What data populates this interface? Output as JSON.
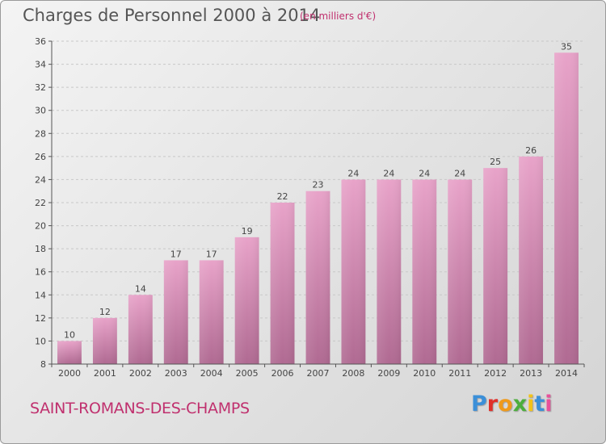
{
  "header": {
    "title": "Charges de Personnel 2000 à 2014",
    "subtitle": "(en milliers d'€)"
  },
  "footer": {
    "commune": "SAINT-ROMANS-DES-CHAMPS",
    "logo_text": "Proxiti"
  },
  "colors": {
    "bar_top": "#e8a3c9",
    "bar_bottom": "#b06a92",
    "accent": "#c0306e",
    "text": "#444444"
  },
  "chart_data": {
    "type": "bar",
    "title": "Charges de Personnel 2000 à 2014",
    "subtitle": "(en milliers d'€)",
    "xlabel": "",
    "ylabel": "",
    "categories": [
      "2000",
      "2001",
      "2002",
      "2003",
      "2004",
      "2005",
      "2006",
      "2007",
      "2008",
      "2009",
      "2010",
      "2011",
      "2012",
      "2013",
      "2014"
    ],
    "values": [
      10,
      12,
      14,
      17,
      17,
      19,
      22,
      23,
      24,
      24,
      24,
      24,
      25,
      26,
      35
    ],
    "ylim": [
      8,
      36
    ],
    "yticks": [
      8,
      10,
      12,
      14,
      16,
      18,
      20,
      22,
      24,
      26,
      28,
      30,
      32,
      34,
      36
    ],
    "grid": true,
    "legend": "none"
  }
}
